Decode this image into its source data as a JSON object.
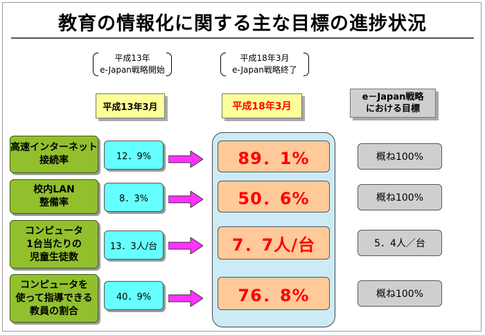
{
  "title": "教育の情報化に関する主な目標の進捗状況",
  "notes": {
    "h13": {
      "line1": "平成13年",
      "line2": "e-Japan戦略開始"
    },
    "h18": {
      "line1": "平成18年3月",
      "line2": "e-Japan戦略終了"
    }
  },
  "headers": {
    "h13": "平成13年3月",
    "h18": "平成18年3月",
    "goal_line1": "e－Japan戦略",
    "goal_line2": "における目標"
  },
  "rows": [
    {
      "label_lines": [
        "高速インターネット",
        "接続率"
      ],
      "h13": "12．9%",
      "h18": "89．1%",
      "goal": "概ね100%"
    },
    {
      "label_lines": [
        "校内LAN",
        "整備率"
      ],
      "h13": "8．3%",
      "h18": "50．6%",
      "goal": "概ね100%"
    },
    {
      "label_lines": [
        "コンピュータ",
        "1台当たりの",
        "児童生徒数"
      ],
      "h13": "13．3人/台",
      "h18": "7．7人/台",
      "goal": "5．4人／台"
    },
    {
      "label_lines": [
        "コンピュータを",
        "使って指導できる",
        "教員の割合"
      ],
      "h13": "40．9%",
      "h18": "76．8%",
      "goal": "概ね100%"
    }
  ],
  "colors": {
    "category_green": "#92c02d",
    "h13_cyan": "#66ffff",
    "h18_peach": "#ffc99a",
    "h18_text_red": "#ff0000",
    "arrow_magenta": "#ff33ff",
    "panel_blue": "#ccecf5",
    "header_yellow": "#ffff99",
    "goal_gray": "#cfcfcf"
  },
  "icons": {
    "arrow": "right-arrow-icon"
  }
}
